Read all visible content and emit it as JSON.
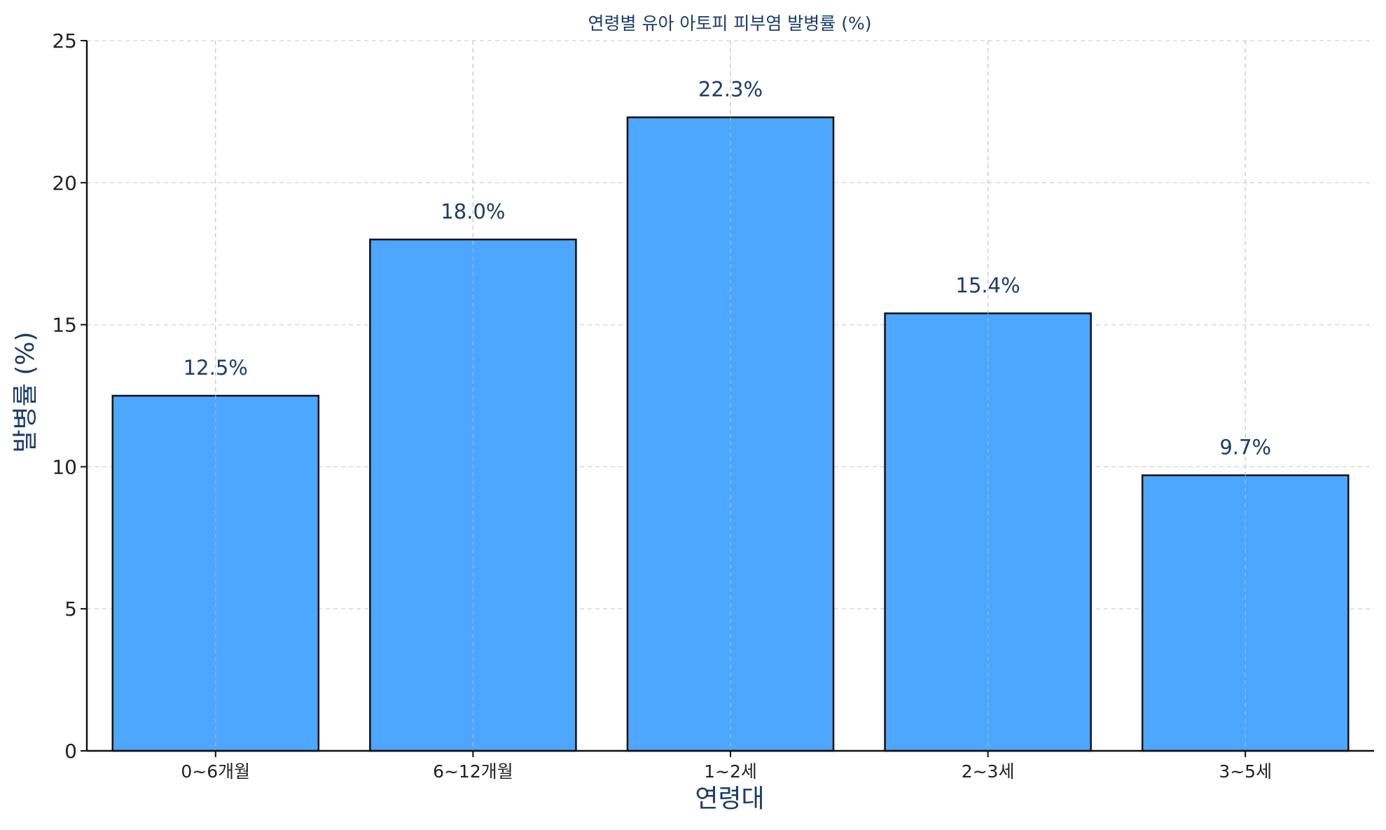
{
  "chart_data": {
    "type": "bar",
    "title": "연령별 유아 아토피 피부염 발병률 (%)",
    "xlabel": "연령대",
    "ylabel": "발병률 (%)",
    "categories": [
      "0~6개월",
      "6~12개월",
      "1~2세",
      "2~3세",
      "3~5세"
    ],
    "values": [
      12.5,
      18.0,
      22.3,
      15.4,
      9.7
    ],
    "data_labels": [
      "12.5%",
      "18.0%",
      "22.3%",
      "15.4%",
      "9.7%"
    ],
    "ylim": [
      0,
      25
    ],
    "yticks": [
      0,
      5,
      10,
      15,
      20,
      25
    ],
    "grid": true,
    "legend": false,
    "colors": {
      "bar_fill": "#4da6ff",
      "bar_edge": "#111111",
      "text_accent": "#1a3d6b",
      "grid": "#d9d9d9"
    }
  }
}
